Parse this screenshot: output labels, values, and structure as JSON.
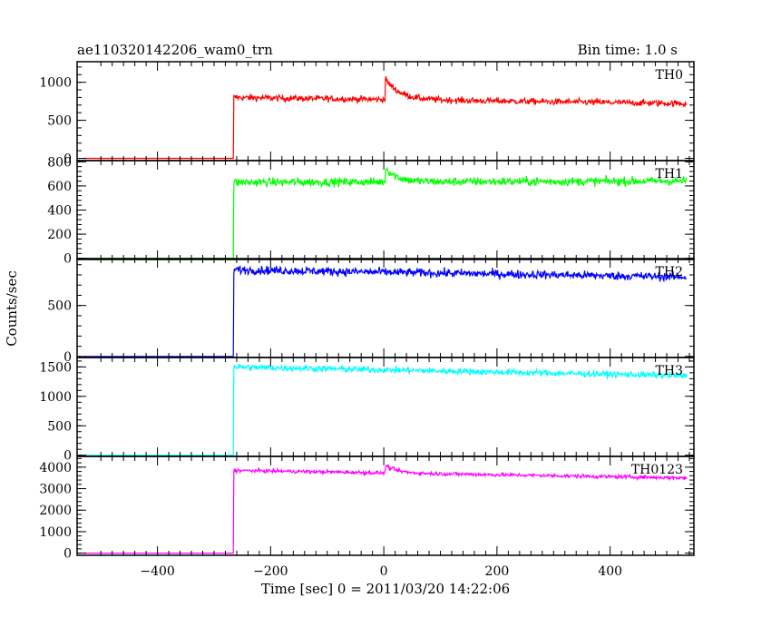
{
  "header": {
    "title": "ae110320142206_wam0_trn",
    "bin_time": "Bin time: 1.0 s"
  },
  "axis": {
    "ylabel": "Counts/sec",
    "xlabel": "Time [sec] 0 = 2011/03/20 14:22:06"
  },
  "chart_data": [
    {
      "type": "line",
      "name": "TH0",
      "color": "#ff0000",
      "xlim": [
        -542,
        548
      ],
      "ylim": [
        -30,
        1270
      ],
      "yticks": [
        0,
        500,
        1000
      ],
      "ytick_labels": [
        "0",
        "500",
        "1000"
      ],
      "baseline": 0,
      "step_x": -265,
      "level_start": 800,
      "level_end": 720,
      "noise": 30,
      "bump": [
        {
          "x": 3,
          "height": 270,
          "decay": 25
        }
      ],
      "x_range": [
        -530,
        535
      ]
    },
    {
      "type": "line",
      "name": "TH1",
      "color": "#00ff00",
      "xlim": [
        -542,
        548
      ],
      "ylim": [
        -10,
        810
      ],
      "yticks": [
        0,
        200,
        400,
        600,
        800
      ],
      "ytick_labels": [
        "0",
        "200",
        "400",
        "600",
        "800"
      ],
      "baseline": 0,
      "step_x": -265,
      "level_start": 630,
      "level_end": 640,
      "noise": 25,
      "bump": [
        {
          "x": 3,
          "height": 120,
          "decay": 20
        }
      ],
      "x_range": [
        -530,
        535
      ]
    },
    {
      "type": "line",
      "name": "TH2",
      "color": "#0000ff",
      "xlim": [
        -542,
        548
      ],
      "ylim": [
        -10,
        960
      ],
      "yticks": [
        0,
        500
      ],
      "ytick_labels": [
        "0",
        "500"
      ],
      "baseline": 0,
      "step_x": -265,
      "level_start": 850,
      "level_end": 780,
      "noise": 30,
      "bump": [],
      "x_range": [
        -530,
        535
      ]
    },
    {
      "type": "line",
      "name": "TH3",
      "color": "#00ffff",
      "xlim": [
        -542,
        548
      ],
      "ylim": [
        -20,
        1660
      ],
      "yticks": [
        0,
        500,
        1000,
        1500
      ],
      "ytick_labels": [
        "0",
        "500",
        "1000",
        "1500"
      ],
      "baseline": 0,
      "step_x": -265,
      "level_start": 1500,
      "level_end": 1350,
      "noise": 40,
      "bump": [],
      "x_range": [
        -530,
        535
      ]
    },
    {
      "type": "line",
      "name": "TH0123",
      "color": "#ff00ff",
      "xlim": [
        -542,
        548
      ],
      "ylim": [
        -100,
        4500
      ],
      "yticks": [
        0,
        1000,
        2000,
        3000,
        4000
      ],
      "ytick_labels": [
        "0",
        "1000",
        "2000",
        "3000",
        "4000"
      ],
      "baseline": 0,
      "step_x": -265,
      "level_start": 3850,
      "level_end": 3500,
      "noise": 60,
      "bump": [
        {
          "x": 3,
          "height": 350,
          "decay": 20
        }
      ],
      "x_range": [
        -530,
        535
      ]
    }
  ],
  "x_axis": {
    "ticks": [
      -400,
      -200,
      0,
      200,
      400
    ],
    "tick_labels": [
      "−400",
      "−200",
      "0",
      "200",
      "400"
    ]
  }
}
